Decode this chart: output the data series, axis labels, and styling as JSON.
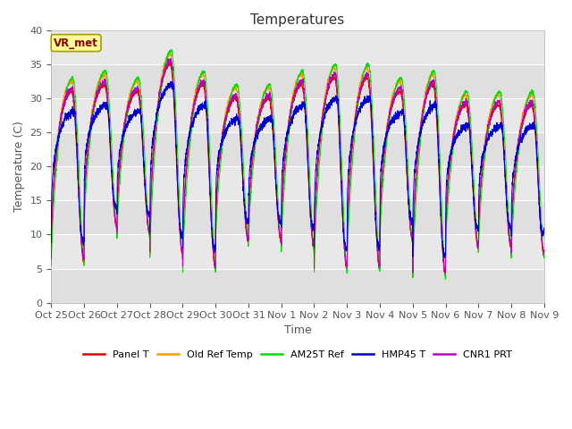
{
  "title": "Temperatures",
  "xlabel": "Time",
  "ylabel": "Temperature (C)",
  "ylim": [
    0,
    40
  ],
  "xtick_labels": [
    "Oct 25",
    "Oct 26",
    "Oct 27",
    "Oct 28",
    "Oct 29",
    "Oct 30",
    "Oct 31",
    "Nov 1",
    "Nov 2",
    "Nov 3",
    "Nov 4",
    "Nov 5",
    "Nov 6",
    "Nov 7",
    "Nov 8",
    "Nov 9"
  ],
  "legend_entries": [
    "Panel T",
    "Old Ref Temp",
    "AM25T Ref",
    "HMP45 T",
    "CNR1 PRT"
  ],
  "legend_colors": [
    "#dd0000",
    "#ff9900",
    "#00dd00",
    "#0000cc",
    "#bb00bb"
  ],
  "background_color": "#e8e8e8",
  "box_label": "VR_met",
  "box_text_color": "#8b0000",
  "box_bg_color": "#ffff99",
  "n_days": 15,
  "day_peaks": [
    31,
    32,
    31,
    35,
    32,
    30,
    30,
    32,
    33,
    33,
    31,
    32,
    29,
    29,
    29
  ],
  "day_mins": [
    6,
    11,
    10,
    7,
    5,
    9,
    9,
    8,
    5,
    5,
    9,
    4,
    8,
    8,
    7
  ],
  "yticks": [
    0,
    5,
    10,
    15,
    20,
    25,
    30,
    35,
    40
  ]
}
